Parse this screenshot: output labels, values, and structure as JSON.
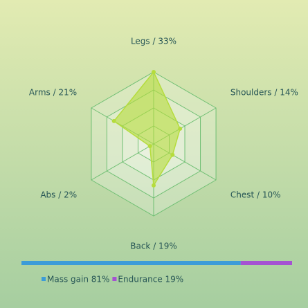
{
  "chart_data": [
    {
      "type": "radar",
      "categories": [
        "Legs / 33%",
        "Shoulders / 14%",
        "Chest / 10%",
        "Back / 19%",
        "Abs / 2%",
        "Arms / 21%"
      ],
      "values": [
        33,
        14,
        10,
        19,
        2,
        21
      ],
      "rlim": [
        0,
        33
      ],
      "color": "#b5dc3c"
    },
    {
      "type": "stacked-bar",
      "series": [
        {
          "name": "Mass gain 81%",
          "color": "#3c9cd8",
          "values": [
            81
          ]
        },
        {
          "name": "Endurance 19%",
          "color": "#a552d2",
          "values": [
            19
          ]
        }
      ],
      "xlim": [
        0,
        100
      ]
    }
  ]
}
